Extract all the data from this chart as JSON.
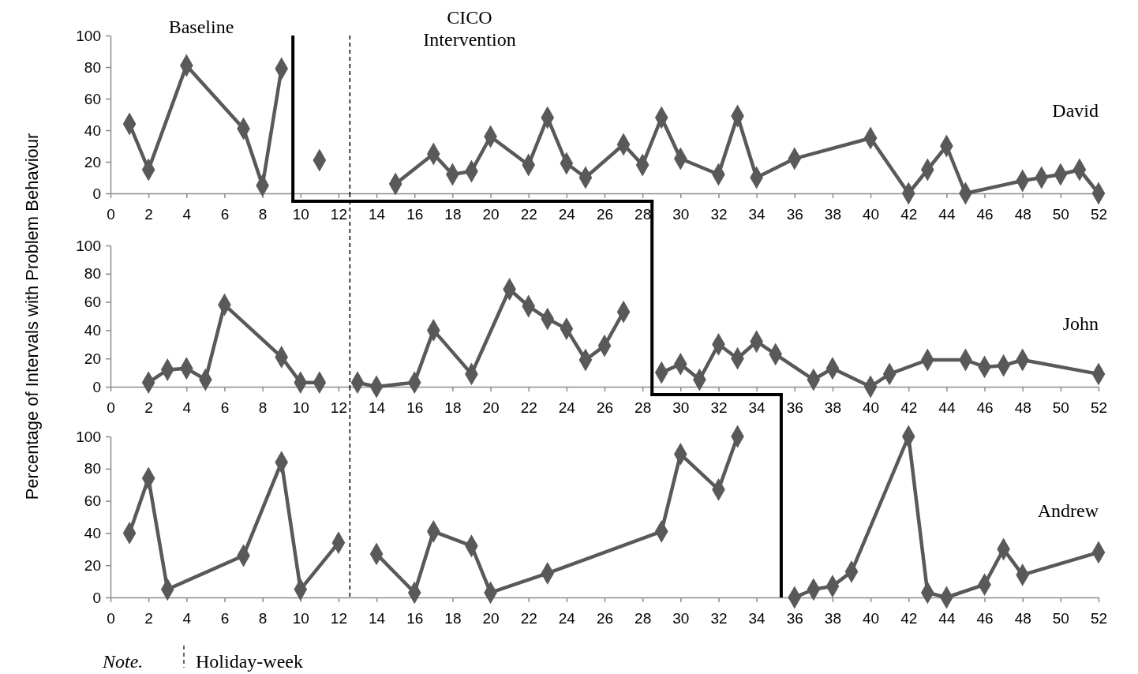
{
  "chart_data": [
    {
      "type": "line",
      "annotations": [
        "Baseline",
        "CICO Intervention",
        "David"
      ],
      "xlim": [
        0,
        52
      ],
      "xticks": [
        0,
        2,
        4,
        6,
        8,
        10,
        12,
        14,
        16,
        18,
        20,
        22,
        24,
        26,
        28,
        30,
        32,
        34,
        36,
        38,
        40,
        42,
        44,
        46,
        48,
        50,
        52
      ],
      "ylim": [
        0,
        100
      ],
      "yticks": [
        0,
        20,
        40,
        60,
        80,
        100
      ],
      "marker": "diamond",
      "line_style": "solid",
      "grid": false,
      "series": [
        {
          "color": "#595959",
          "x": [
            1,
            2,
            4,
            7,
            8,
            9,
            10,
            11,
            12,
            15,
            17,
            18,
            19,
            20,
            22,
            23,
            24,
            25,
            27,
            28,
            29,
            30,
            32,
            33,
            34,
            36,
            40,
            42,
            43,
            44,
            45,
            48,
            49,
            50,
            51,
            52
          ],
          "values": [
            44,
            15,
            81,
            41,
            5,
            79,
            null,
            21,
            null,
            6,
            25,
            12,
            14,
            36,
            18,
            48,
            19,
            10,
            31,
            18,
            48,
            22,
            12,
            49,
            10,
            22,
            35,
            0,
            15,
            30,
            0,
            8,
            10,
            12,
            15,
            0
          ]
        }
      ],
      "ref_lines": [
        {
          "axis": "x",
          "value": 9.6,
          "color": "#000000",
          "line_style": "solid"
        },
        {
          "axis": "x",
          "value": 12.6,
          "color": "#000000",
          "line_style": "dashed"
        }
      ]
    },
    {
      "type": "line",
      "ylabel": "Percentage of Intervals with Problem Behaviour",
      "annotations": [
        "John"
      ],
      "xlim": [
        0,
        52
      ],
      "xticks": [
        0,
        2,
        4,
        6,
        8,
        10,
        12,
        14,
        16,
        18,
        20,
        22,
        24,
        26,
        28,
        30,
        32,
        34,
        36,
        38,
        40,
        42,
        44,
        46,
        48,
        50,
        52
      ],
      "ylim": [
        0,
        100
      ],
      "yticks": [
        0,
        20,
        40,
        60,
        80,
        100
      ],
      "marker": "diamond",
      "line_style": "solid",
      "grid": false,
      "series": [
        {
          "color": "#595959",
          "x": [
            2,
            3,
            4,
            5,
            6,
            9,
            10,
            11,
            12,
            13,
            14,
            16,
            17,
            19,
            21,
            22,
            23,
            24,
            25,
            26,
            27,
            28,
            29,
            30,
            31,
            32,
            33,
            34,
            35,
            37,
            38,
            40,
            41,
            43,
            45,
            46,
            47,
            48,
            52
          ],
          "values": [
            3,
            12,
            13,
            5,
            58,
            21,
            3,
            3,
            null,
            3,
            0,
            3,
            40,
            9,
            69,
            57,
            48,
            41,
            19,
            29,
            53,
            null,
            10,
            16,
            5,
            30,
            20,
            32,
            23,
            5,
            13,
            0,
            9,
            19,
            19,
            14,
            15,
            19,
            9
          ]
        }
      ],
      "ref_lines": [
        {
          "axis": "x",
          "value": 28.5,
          "color": "#000000",
          "line_style": "solid"
        },
        {
          "axis": "x",
          "value": 12.6,
          "color": "#000000",
          "line_style": "dashed"
        }
      ]
    },
    {
      "type": "line",
      "annotations": [
        "Andrew",
        "Note.",
        "Holiday-week"
      ],
      "xlim": [
        0,
        52
      ],
      "xticks": [
        0,
        2,
        4,
        6,
        8,
        10,
        12,
        14,
        16,
        18,
        20,
        22,
        24,
        26,
        28,
        30,
        32,
        34,
        36,
        38,
        40,
        42,
        44,
        46,
        48,
        50,
        52
      ],
      "ylim": [
        0,
        100
      ],
      "yticks": [
        0,
        20,
        40,
        60,
        80,
        100
      ],
      "marker": "diamond",
      "line_style": "solid",
      "grid": false,
      "series": [
        {
          "color": "#595959",
          "x": [
            1,
            2,
            3,
            7,
            9,
            10,
            12,
            13,
            14,
            16,
            17,
            19,
            20,
            23,
            29,
            30,
            32,
            33,
            35,
            36,
            37,
            38,
            39,
            42,
            43,
            44,
            46,
            47,
            48,
            52
          ],
          "values": [
            40,
            74,
            5,
            26,
            84,
            5,
            34,
            null,
            27,
            3,
            41,
            32,
            3,
            15,
            41,
            89,
            67,
            100,
            null,
            0,
            5,
            7,
            16,
            100,
            3,
            0,
            8,
            30,
            14,
            28
          ]
        }
      ],
      "ref_lines": [
        {
          "axis": "x",
          "value": 35.3,
          "color": "#000000",
          "line_style": "solid"
        },
        {
          "axis": "x",
          "value": 12.6,
          "color": "#000000",
          "line_style": "dashed"
        }
      ]
    }
  ]
}
